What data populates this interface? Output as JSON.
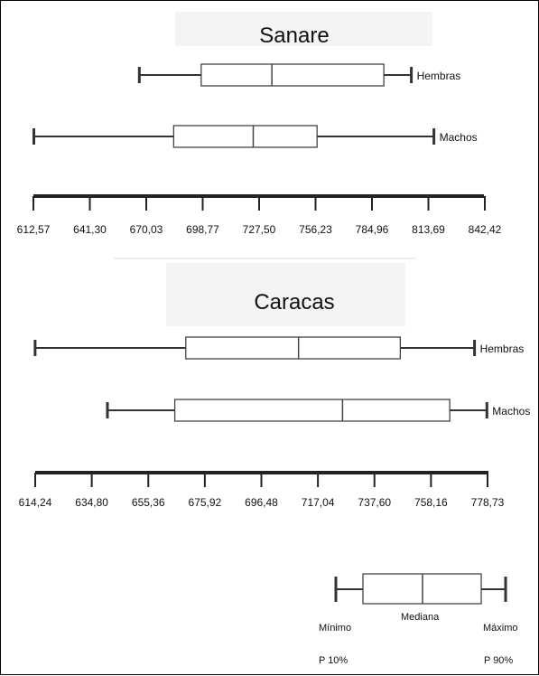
{
  "chart_data": [
    {
      "type": "boxplot",
      "title": "Sanare",
      "axis_ticks": [
        "612,57",
        "641,30",
        "670,03",
        "698,77",
        "727,50",
        "756,23",
        "784,96",
        "813,69",
        "842,42"
      ],
      "xlim": [
        612.57,
        842.42
      ],
      "series": [
        {
          "name": "Hembras",
          "p10": 666.5,
          "q1": 698.0,
          "median": 734.0,
          "q3": 791.0,
          "p90": 805.0
        },
        {
          "name": "Machos",
          "p10": 612.8,
          "q1": 684.0,
          "median": 724.5,
          "q3": 757.0,
          "p90": 816.5
        }
      ]
    },
    {
      "type": "boxplot",
      "title": "Caracas",
      "axis_ticks": [
        "614,24",
        "634,80",
        "655,36",
        "675,92",
        "696,48",
        "717,04",
        "737,60",
        "758,16",
        "778,73"
      ],
      "xlim": [
        614.24,
        778.73
      ],
      "series": [
        {
          "name": "Hembras",
          "p10": 614.2,
          "q1": 669.0,
          "median": 710.0,
          "q3": 747.0,
          "p90": 774.0
        },
        {
          "name": "Machos",
          "p10": 640.5,
          "q1": 665.0,
          "median": 726.0,
          "q3": 765.0,
          "p90": 778.5
        }
      ]
    }
  ],
  "legend": {
    "min_label": "Mínimo",
    "median_label": "Mediana",
    "max_label": "Máximo",
    "p10_label": "P 10%",
    "p90_label": "P 90%"
  }
}
